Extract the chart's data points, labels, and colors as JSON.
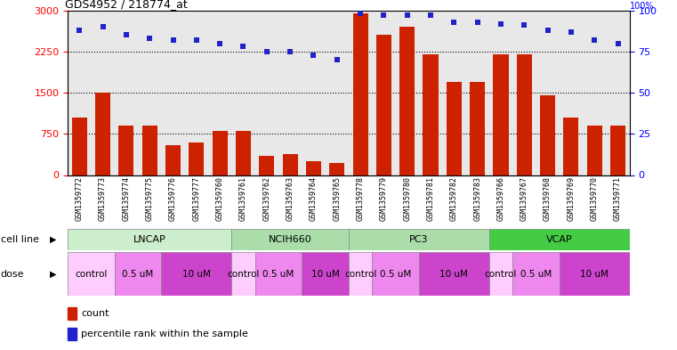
{
  "title": "GDS4952 / 218774_at",
  "samples": [
    "GSM1359772",
    "GSM1359773",
    "GSM1359774",
    "GSM1359775",
    "GSM1359776",
    "GSM1359777",
    "GSM1359760",
    "GSM1359761",
    "GSM1359762",
    "GSM1359763",
    "GSM1359764",
    "GSM1359765",
    "GSM1359778",
    "GSM1359779",
    "GSM1359780",
    "GSM1359781",
    "GSM1359782",
    "GSM1359783",
    "GSM1359766",
    "GSM1359767",
    "GSM1359768",
    "GSM1359769",
    "GSM1359770",
    "GSM1359771"
  ],
  "counts": [
    1050,
    1500,
    900,
    900,
    550,
    600,
    800,
    800,
    350,
    380,
    250,
    220,
    2950,
    2550,
    2700,
    2200,
    1700,
    1700,
    2200,
    2200,
    1450,
    1050,
    900,
    900
  ],
  "percentile_ranks": [
    88,
    90,
    85,
    83,
    82,
    82,
    80,
    78,
    75,
    75,
    73,
    70,
    98,
    97,
    97,
    97,
    93,
    93,
    92,
    91,
    88,
    87,
    82,
    80
  ],
  "bar_color": "#CC2200",
  "dot_color": "#2222CC",
  "ylim_left": [
    0,
    3000
  ],
  "ylim_right": [
    0,
    100
  ],
  "yticks_left": [
    0,
    750,
    1500,
    2250,
    3000
  ],
  "yticks_right": [
    0,
    25,
    50,
    75,
    100
  ],
  "cell_line_data": [
    {
      "name": "LNCAP",
      "start": 0,
      "end": 7,
      "color": "#CCEECC"
    },
    {
      "name": "NCIH660",
      "start": 7,
      "end": 12,
      "color": "#AADDAA"
    },
    {
      "name": "PC3",
      "start": 12,
      "end": 18,
      "color": "#AADDAA"
    },
    {
      "name": "VCAP",
      "start": 18,
      "end": 24,
      "color": "#44CC44"
    }
  ],
  "dose_data": [
    {
      "name": "control",
      "start": 0,
      "end": 2,
      "color": "#FFCCFF"
    },
    {
      "name": "0.5 uM",
      "start": 2,
      "end": 4,
      "color": "#EE88EE"
    },
    {
      "name": "10 uM",
      "start": 4,
      "end": 7,
      "color": "#CC44CC"
    },
    {
      "name": "control",
      "start": 7,
      "end": 8,
      "color": "#FFCCFF"
    },
    {
      "name": "0.5 uM",
      "start": 8,
      "end": 10,
      "color": "#EE88EE"
    },
    {
      "name": "10 uM",
      "start": 10,
      "end": 12,
      "color": "#CC44CC"
    },
    {
      "name": "control",
      "start": 12,
      "end": 13,
      "color": "#FFCCFF"
    },
    {
      "name": "0.5 uM",
      "start": 13,
      "end": 15,
      "color": "#EE88EE"
    },
    {
      "name": "10 uM",
      "start": 15,
      "end": 18,
      "color": "#CC44CC"
    },
    {
      "name": "control",
      "start": 18,
      "end": 19,
      "color": "#FFCCFF"
    },
    {
      "name": "0.5 uM",
      "start": 19,
      "end": 21,
      "color": "#EE88EE"
    },
    {
      "name": "10 uM",
      "start": 21,
      "end": 24,
      "color": "#CC44CC"
    }
  ],
  "xtick_bg_color": "#DDDDDD",
  "grid_color": "#000000",
  "grid_linestyle": ":",
  "grid_linewidth": 0.8
}
